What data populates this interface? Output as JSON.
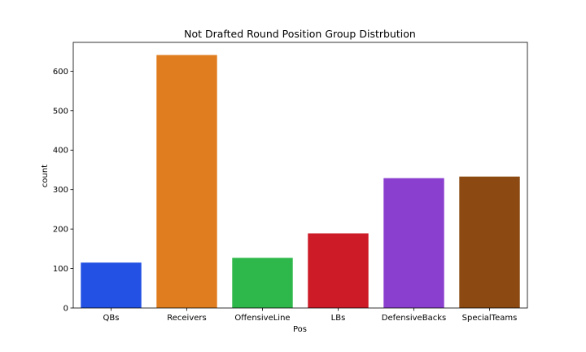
{
  "chart_data": {
    "type": "bar",
    "title": "Not Drafted Round Position Group Distrbution",
    "xlabel": "Pos",
    "ylabel": "count",
    "categories": [
      "QBs",
      "Receivers",
      "OffensiveLine",
      "LBs",
      "DefensiveBacks",
      "SpecialTeams"
    ],
    "values": [
      115,
      641,
      127,
      189,
      329,
      333
    ],
    "colors": [
      "#2251e3",
      "#e07e1f",
      "#2eb74a",
      "#cd1b27",
      "#8b3fcf",
      "#8c4a12"
    ],
    "ylim": [
      0,
      673
    ],
    "yticks": [
      0,
      100,
      200,
      300,
      400,
      500,
      600
    ],
    "grid": false,
    "legend": "none"
  }
}
